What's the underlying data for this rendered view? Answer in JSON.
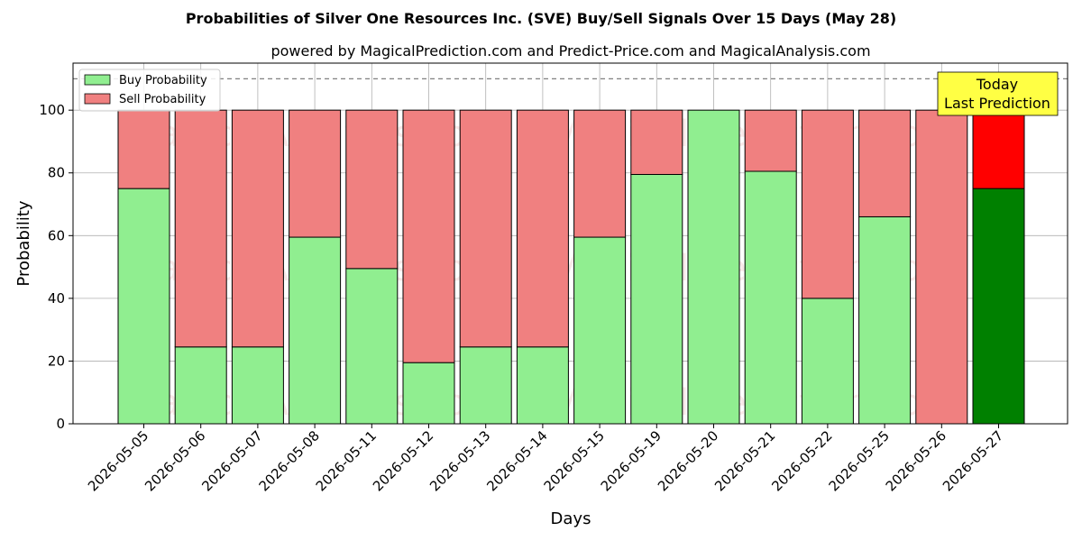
{
  "chart_data": {
    "type": "bar",
    "stacked": true,
    "title": "Probabilities of Silver One Resources Inc. (SVE) Buy/Sell Signals Over 15 Days (May 28)",
    "subtitle": "powered by MagicalPrediction.com and Predict-Price.com and MagicalAnalysis.com",
    "xlabel": "Days",
    "ylabel": "Probability",
    "ylim": [
      0,
      115
    ],
    "yticks": [
      0,
      20,
      40,
      60,
      80,
      100
    ],
    "reference_line": 110,
    "grid": true,
    "legend_placement": "top-left",
    "categories": [
      "2026-05-05",
      "2026-05-06",
      "2026-05-07",
      "2026-05-08",
      "2026-05-11",
      "2026-05-12",
      "2026-05-13",
      "2026-05-14",
      "2026-05-15",
      "2026-05-19",
      "2026-05-20",
      "2026-05-21",
      "2026-05-22",
      "2026-05-25",
      "2026-05-26",
      "2026-05-27"
    ],
    "series": [
      {
        "name": "Buy Probability",
        "values": [
          75,
          24.5,
          24.5,
          59.5,
          49.5,
          19.5,
          24.5,
          24.5,
          59.5,
          79.5,
          100,
          80.5,
          40,
          66,
          0,
          75
        ]
      },
      {
        "name": "Sell Probability",
        "values": [
          25,
          75.5,
          75.5,
          40.5,
          50.5,
          80.5,
          75.5,
          75.5,
          40.5,
          20.5,
          0,
          19.5,
          60,
          34,
          100,
          25
        ]
      }
    ],
    "colors": {
      "buy": "#90ee90",
      "sell": "#f08080",
      "buy_today": "#008000",
      "sell_today": "#ff0000",
      "annotation_bg": "#ffff44"
    },
    "annotation": {
      "line1": "Today",
      "line2": "Last Prediction"
    },
    "watermarks": [
      "MagicalAnalysis.com",
      "MagicalPrediction.com"
    ]
  }
}
